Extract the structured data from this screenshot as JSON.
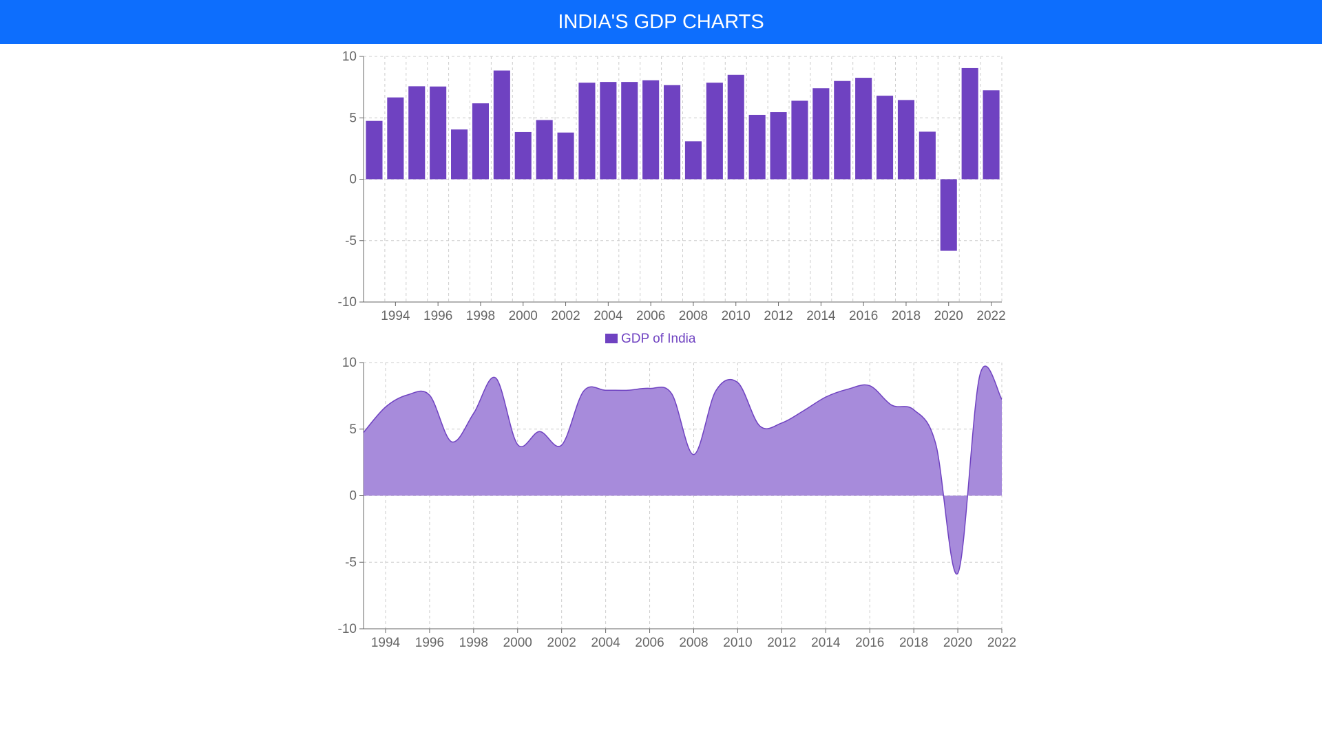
{
  "header": {
    "title": "INDIA'S GDP CHARTS"
  },
  "colors": {
    "header_bg": "#0d6efd",
    "header_text": "#ffffff",
    "bar": "#6f42c1",
    "area_fill": "#a78bdb",
    "area_stroke": "#6f42c1",
    "grid": "#cccccc",
    "axis": "#666666"
  },
  "chart_data": [
    {
      "type": "bar",
      "x": [
        1993,
        1994,
        1995,
        1996,
        1997,
        1998,
        1999,
        2000,
        2001,
        2002,
        2003,
        2004,
        2005,
        2006,
        2007,
        2008,
        2009,
        2010,
        2011,
        2012,
        2013,
        2014,
        2015,
        2016,
        2017,
        2018,
        2019,
        2020,
        2021,
        2022
      ],
      "xticks": [
        1994,
        1996,
        1998,
        2000,
        2002,
        2004,
        2006,
        2008,
        2010,
        2012,
        2014,
        2016,
        2018,
        2020,
        2022
      ],
      "yticks": [
        10,
        5,
        0,
        -5,
        -10
      ],
      "series": [
        {
          "name": "GDP of India",
          "values": [
            4.75,
            6.66,
            7.57,
            7.55,
            4.05,
            6.18,
            8.85,
            3.84,
            4.82,
            3.8,
            7.86,
            7.92,
            7.92,
            8.06,
            7.66,
            3.09,
            7.86,
            8.5,
            5.24,
            5.46,
            6.39,
            7.41,
            8.0,
            8.26,
            6.8,
            6.45,
            3.87,
            -5.83,
            9.05,
            7.24
          ]
        }
      ],
      "ylim": [
        -10,
        10
      ],
      "grid": true,
      "legend": "bottom-center"
    },
    {
      "type": "area",
      "x": [
        1993,
        1994,
        1995,
        1996,
        1997,
        1998,
        1999,
        2000,
        2001,
        2002,
        2003,
        2004,
        2005,
        2006,
        2007,
        2008,
        2009,
        2010,
        2011,
        2012,
        2013,
        2014,
        2015,
        2016,
        2017,
        2018,
        2019,
        2020,
        2021,
        2022
      ],
      "xticks": [
        1994,
        1996,
        1998,
        2000,
        2002,
        2004,
        2006,
        2008,
        2010,
        2012,
        2014,
        2016,
        2018,
        2020,
        2022
      ],
      "yticks": [
        10,
        5,
        0,
        -5,
        -10
      ],
      "series": [
        {
          "values": [
            4.75,
            6.66,
            7.57,
            7.55,
            4.05,
            6.18,
            8.85,
            3.84,
            4.82,
            3.8,
            7.86,
            7.92,
            7.92,
            8.06,
            7.66,
            3.09,
            7.86,
            8.5,
            5.24,
            5.46,
            6.39,
            7.41,
            8.0,
            8.26,
            6.8,
            6.45,
            3.87,
            -5.83,
            9.05,
            7.24
          ]
        }
      ],
      "ylim": [
        -10,
        10
      ],
      "grid": true
    }
  ]
}
